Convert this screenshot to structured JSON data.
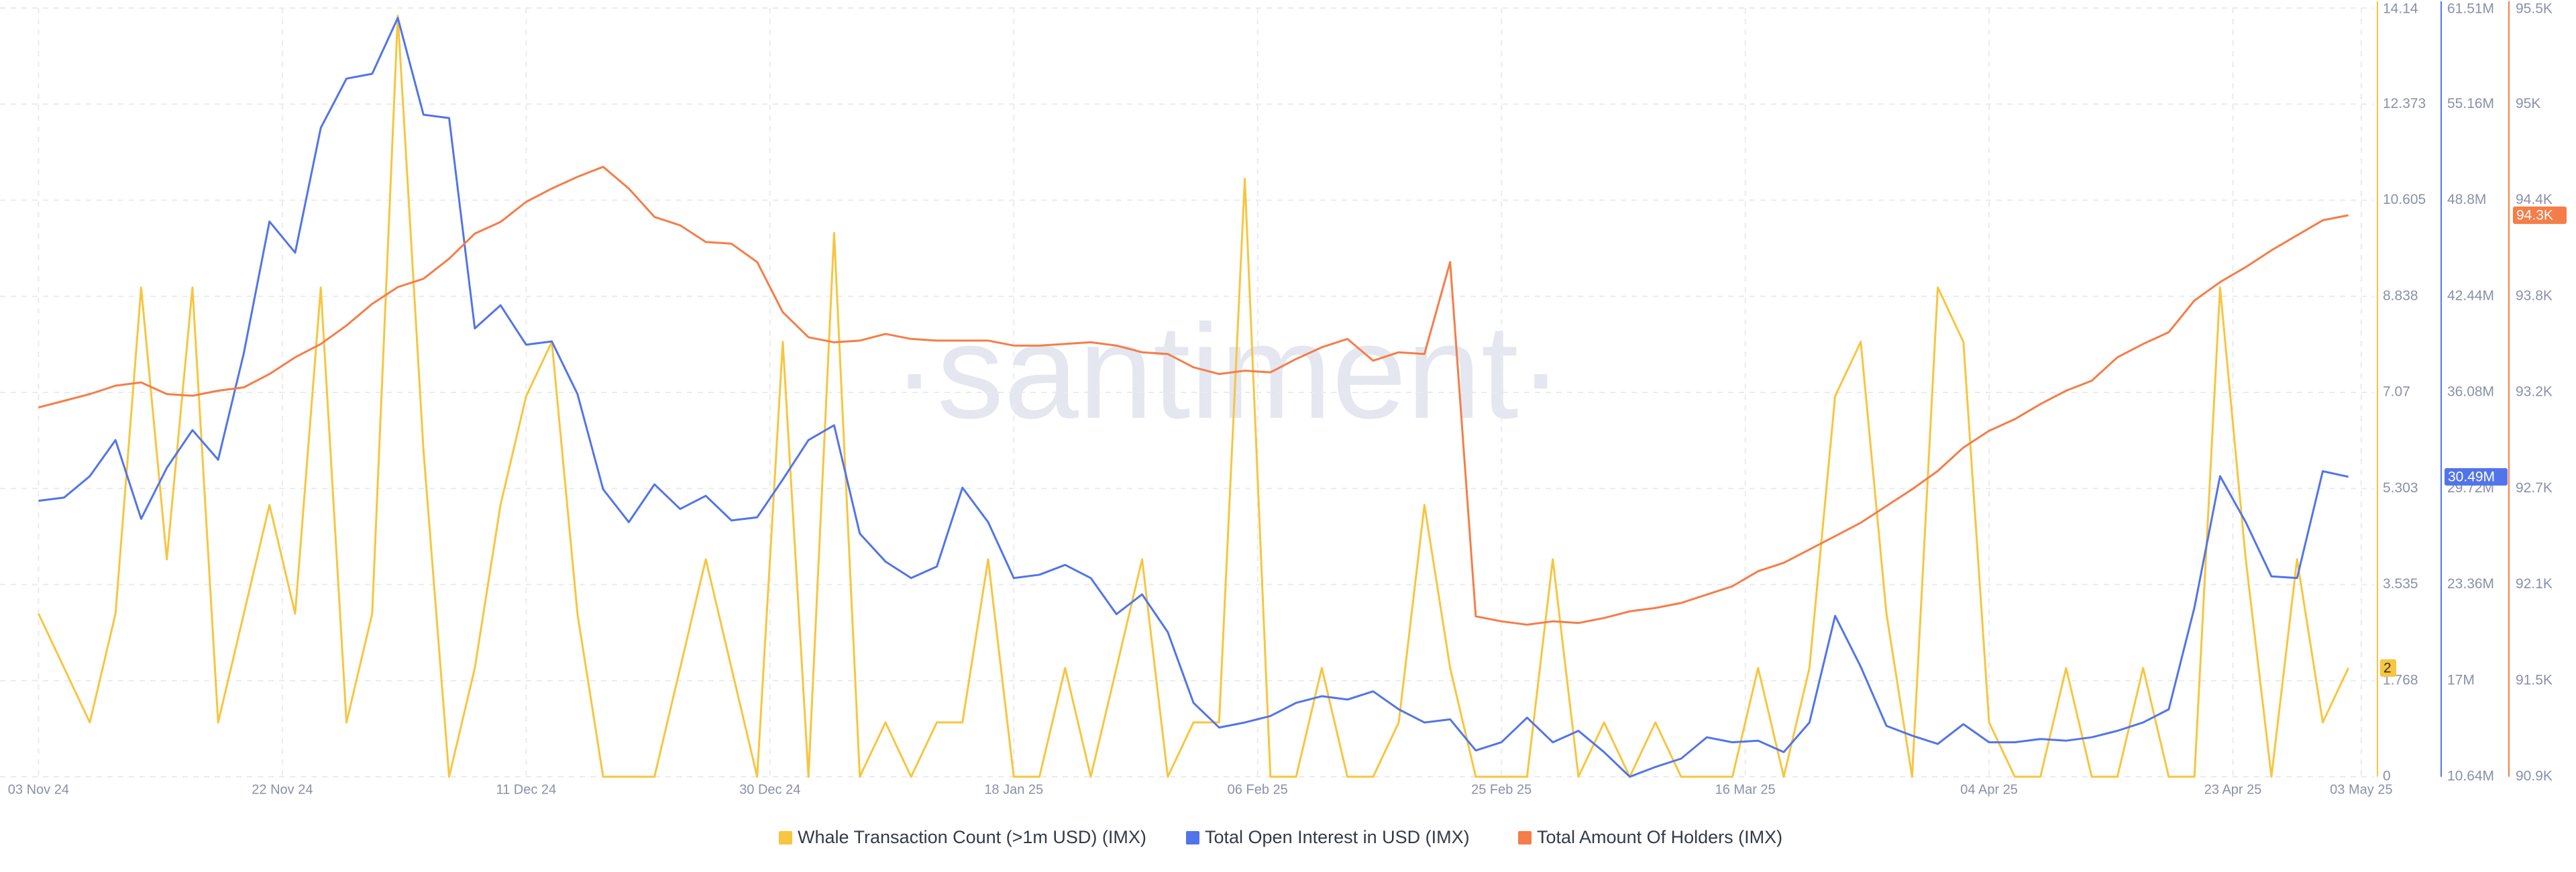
{
  "chart_data": {
    "type": "line",
    "watermark": "·santiment·",
    "x": [
      "03 Nov 24",
      "05 Nov 24",
      "07 Nov 24",
      "09 Nov 24",
      "11 Nov 24",
      "13 Nov 24",
      "15 Nov 24",
      "17 Nov 24",
      "19 Nov 24",
      "21 Nov 24",
      "23 Nov 24",
      "25 Nov 24",
      "27 Nov 24",
      "29 Nov 24",
      "01 Dec 24",
      "03 Dec 24",
      "05 Dec 24",
      "07 Dec 24",
      "09 Dec 24",
      "11 Dec 24",
      "13 Dec 24",
      "15 Dec 24",
      "17 Dec 24",
      "19 Dec 24",
      "21 Dec 24",
      "23 Dec 24",
      "25 Dec 24",
      "27 Dec 24",
      "29 Dec 24",
      "31 Dec 24",
      "02 Jan 25",
      "04 Jan 25",
      "06 Jan 25",
      "08 Jan 25",
      "10 Jan 25",
      "12 Jan 25",
      "14 Jan 25",
      "16 Jan 25",
      "18 Jan 25",
      "20 Jan 25",
      "22 Jan 25",
      "24 Jan 25",
      "26 Jan 25",
      "28 Jan 25",
      "30 Jan 25",
      "01 Feb 25",
      "03 Feb 25",
      "05 Feb 25",
      "07 Feb 25",
      "09 Feb 25",
      "11 Feb 25",
      "13 Feb 25",
      "15 Feb 25",
      "17 Feb 25",
      "19 Feb 25",
      "21 Feb 25",
      "23 Feb 25",
      "25 Feb 25",
      "27 Feb 25",
      "01 Mar 25",
      "03 Mar 25",
      "05 Mar 25",
      "07 Mar 25",
      "09 Mar 25",
      "11 Mar 25",
      "13 Mar 25",
      "15 Mar 25",
      "17 Mar 25",
      "19 Mar 25",
      "21 Mar 25",
      "23 Mar 25",
      "25 Mar 25",
      "27 Mar 25",
      "29 Mar 25",
      "31 Mar 25",
      "02 Apr 25",
      "04 Apr 25",
      "06 Apr 25",
      "08 Apr 25",
      "10 Apr 25",
      "12 Apr 25",
      "14 Apr 25",
      "16 Apr 25",
      "18 Apr 25",
      "20 Apr 25",
      "22 Apr 25",
      "24 Apr 25",
      "26 Apr 25",
      "28 Apr 25",
      "30 Apr 25",
      "02 May 25"
    ],
    "xlim": [
      "31 Oct 24",
      "04 May 25"
    ],
    "xticks": [
      "03 Nov 24",
      "22 Nov 24",
      "11 Dec 24",
      "30 Dec 24",
      "18 Jan 25",
      "06 Feb 25",
      "25 Feb 25",
      "16 Mar 25",
      "04 Apr 25",
      "23 Apr 25",
      "03 May 25"
    ],
    "ylim": [
      0,
      14.14
    ],
    "yticks": [
      0,
      {
        "value": 1.7675,
        "label": "1.768"
      },
      3.535,
      {
        "value": 5.3025,
        "label": "5.303"
      },
      7.07,
      {
        "value": 8.8375,
        "label": "8.838"
      },
      10.605,
      {
        "value": 12.3725,
        "label": "12.373"
      },
      14.14
    ],
    "y2lim": [
      10640000,
      61510000
    ],
    "y2ticks": [
      {
        "value": 10640000,
        "label": "10.64M"
      },
      {
        "value": 16998750,
        "label": "17M"
      },
      {
        "value": 23357500,
        "label": "23.36M"
      },
      {
        "value": 29716250,
        "label": "29.72M"
      },
      {
        "value": 36075000,
        "label": "36.08M"
      },
      {
        "value": 42433750,
        "label": "42.44M"
      },
      {
        "value": 48792500,
        "label": "48.8M"
      },
      {
        "value": 55151250,
        "label": "55.16M"
      },
      {
        "value": 61510000,
        "label": "61.51M"
      }
    ],
    "y3lim": [
      90900,
      95500
    ],
    "y3ticks": [
      {
        "value": 90900,
        "label": "90.9K"
      },
      {
        "value": 91475,
        "label": "91.5K"
      },
      {
        "value": 92050,
        "label": "92.1K"
      },
      {
        "value": 92625,
        "label": "92.7K"
      },
      {
        "value": 93200,
        "label": "93.2K"
      },
      {
        "value": 93775,
        "label": "93.8K"
      },
      {
        "value": 94350,
        "label": "94.4K"
      },
      {
        "value": 94925,
        "label": "95K"
      },
      {
        "value": 95500,
        "label": "95.5K"
      }
    ],
    "grid": true,
    "legend": "bottom",
    "series": [
      {
        "name": "Whale Transaction Count (>1m USD) (IMX)",
        "color": "#f7c53f",
        "axis": "y",
        "last_label": "2",
        "values": [
          3,
          2,
          1,
          3,
          9,
          4,
          9,
          1,
          3,
          5,
          3,
          9,
          1,
          3,
          14,
          6,
          0,
          2,
          5,
          7,
          8,
          3,
          0,
          0,
          0,
          2,
          4,
          2,
          0,
          8,
          0,
          10,
          0,
          1,
          0,
          1,
          1,
          4,
          0,
          0,
          2,
          0,
          2,
          4,
          0,
          1,
          1,
          11,
          0,
          0,
          2,
          0,
          0,
          1,
          5,
          2,
          0,
          0,
          0,
          4,
          0,
          1,
          0,
          1,
          0,
          0,
          0,
          2,
          0,
          2,
          7,
          8,
          3,
          0,
          9,
          8,
          1,
          0,
          0,
          2,
          0,
          0,
          2,
          0,
          0,
          9,
          4,
          0,
          4,
          1,
          2
        ]
      },
      {
        "name": "Total Open Interest in USD (IMX)",
        "color": "#5274ea",
        "axis": "y2",
        "last_label": "30.49M",
        "values": [
          28900000,
          29120000,
          30530000,
          32920000,
          27710000,
          31080000,
          33580000,
          31620000,
          38680000,
          47380000,
          45320000,
          53580000,
          56840000,
          57160000,
          60860000,
          54450000,
          54230000,
          40310000,
          41840000,
          39230000,
          39450000,
          35970000,
          29660000,
          27490000,
          29990000,
          28360000,
          29230000,
          27600000,
          27810000,
          30310000,
          32920000,
          33900000,
          26730000,
          24880000,
          23790000,
          24550000,
          29770000,
          27490000,
          23790000,
          24010000,
          24660000,
          23790000,
          21400000,
          22710000,
          20210000,
          15530000,
          13900000,
          14230000,
          14660000,
          15530000,
          15970000,
          15750000,
          16290000,
          15100000,
          14230000,
          14440000,
          12380000,
          12920000,
          14550000,
          12920000,
          13680000,
          12270000,
          10640000,
          11290000,
          11840000,
          13250000,
          12920000,
          13030000,
          12270000,
          14230000,
          21290000,
          17920000,
          14010000,
          13360000,
          12810000,
          14120000,
          12920000,
          12920000,
          13140000,
          13030000,
          13250000,
          13680000,
          14230000,
          15100000,
          21840000,
          30530000,
          27490000,
          23900000,
          23790000,
          30860000,
          30490000
        ]
      },
      {
        "name": "Total Amount Of Holders (IMX)",
        "color": "#f57d48",
        "axis": "y3",
        "last_label": "94.3K",
        "values": [
          93110,
          93150,
          93190,
          93240,
          93260,
          93190,
          93180,
          93210,
          93230,
          93310,
          93410,
          93490,
          93600,
          93730,
          93830,
          93880,
          94000,
          94150,
          94220,
          94340,
          94420,
          94490,
          94550,
          94420,
          94250,
          94200,
          94100,
          94090,
          93980,
          93680,
          93530,
          93500,
          93510,
          93550,
          93520,
          93510,
          93510,
          93510,
          93480,
          93480,
          93490,
          93500,
          93480,
          93440,
          93430,
          93350,
          93310,
          93330,
          93320,
          93400,
          93470,
          93520,
          93390,
          93440,
          93430,
          93980,
          91860,
          91830,
          91810,
          91830,
          91820,
          91850,
          91890,
          91910,
          91940,
          91990,
          92040,
          92130,
          92180,
          92260,
          92340,
          92420,
          92520,
          92620,
          92730,
          92870,
          92970,
          93040,
          93130,
          93210,
          93270,
          93410,
          93490,
          93560,
          93750,
          93860,
          93950,
          94050,
          94140,
          94230,
          94260
        ]
      }
    ]
  }
}
